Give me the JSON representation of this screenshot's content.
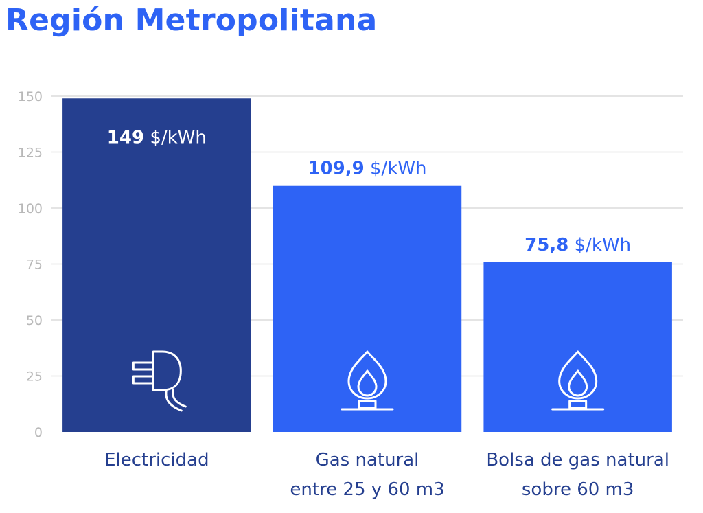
{
  "title": "Región Metropolitana",
  "chart_data": {
    "type": "bar",
    "ylim": [
      0,
      150
    ],
    "yticks": [
      0,
      25,
      50,
      75,
      100,
      125,
      150
    ],
    "grid": true,
    "unit": "$/kWh",
    "categories": [
      [
        "Electricidad"
      ],
      [
        "Gas natural",
        "entre 25 y 60 m3"
      ],
      [
        "Bolsa de gas natural",
        "sobre 60 m3"
      ]
    ],
    "values": [
      149,
      109.9,
      75.8
    ],
    "value_labels": [
      "149",
      "109,9",
      "75,8"
    ],
    "icons": [
      "plug-icon",
      "gas-flame-icon",
      "gas-flame-icon"
    ],
    "colors": {
      "electricity": "#253f8f",
      "gas": "#2e63f5",
      "grid": "#dcdcdc",
      "tick": "#b8b8b8",
      "category_text": "#253f8f",
      "title": "#2e63f5"
    }
  }
}
